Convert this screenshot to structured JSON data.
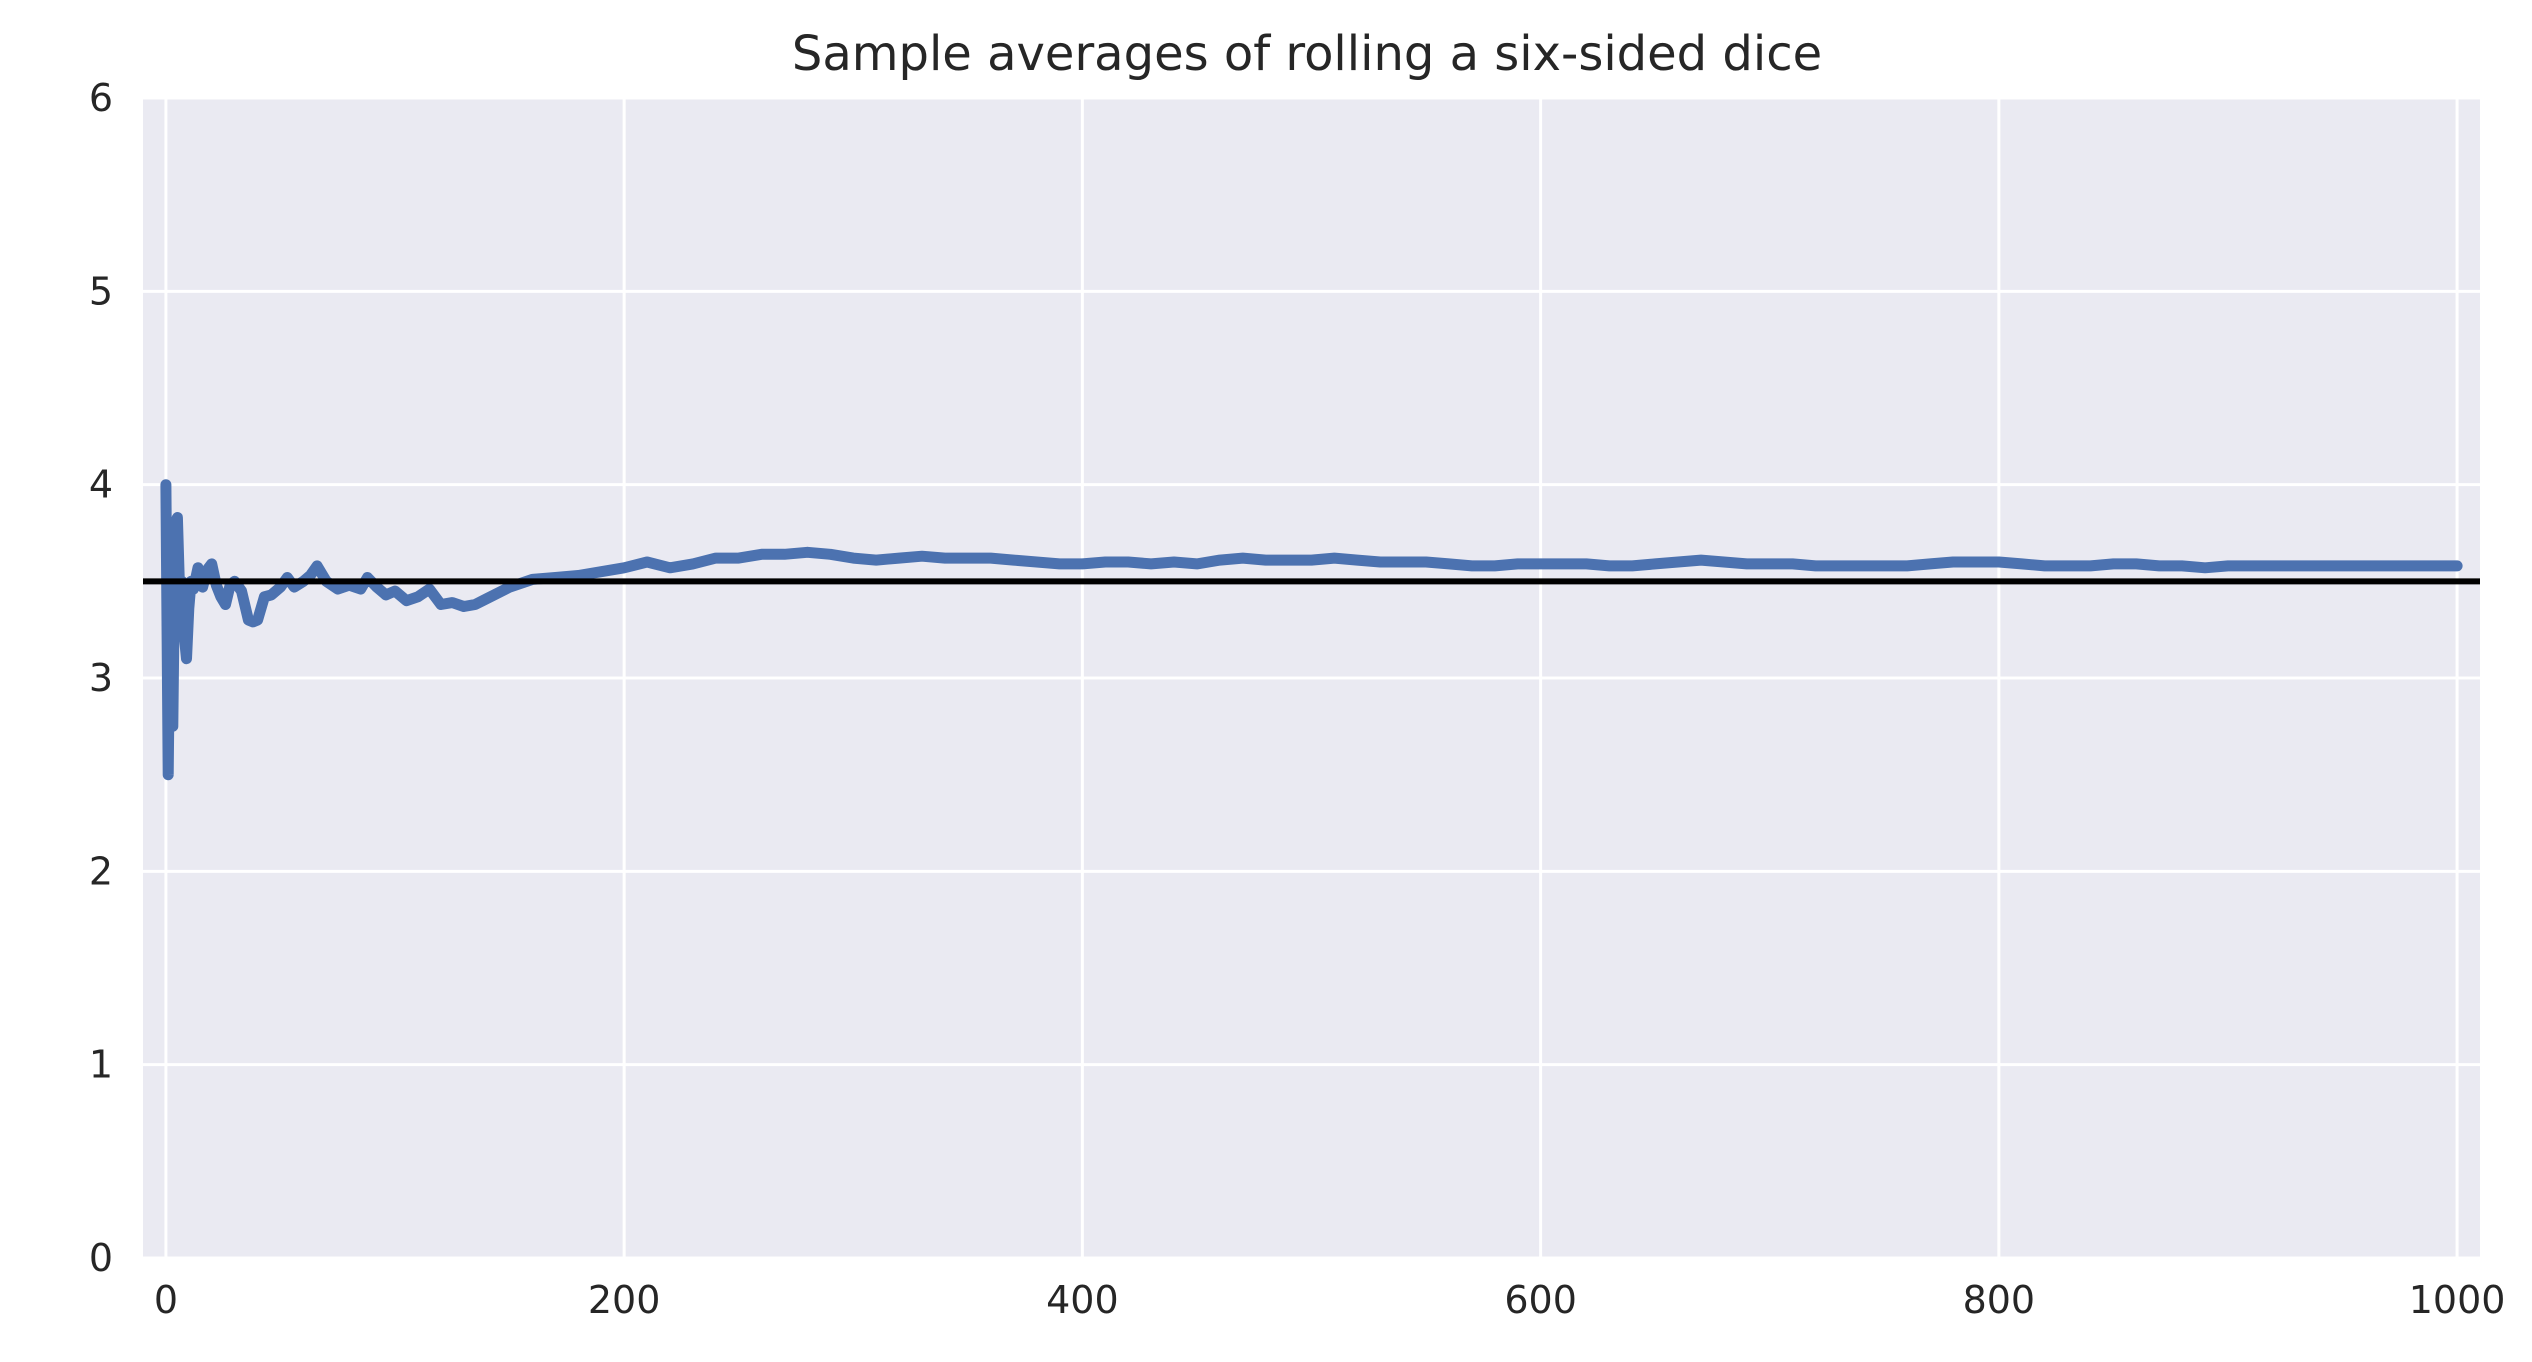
{
  "chart_data": {
    "type": "line",
    "title": "Sample averages of rolling a six-sided dice",
    "xlabel": "",
    "ylabel": "",
    "xlim": [
      -10,
      1010
    ],
    "ylim": [
      0,
      6
    ],
    "xticks": [
      0,
      200,
      400,
      600,
      800,
      1000
    ],
    "yticks": [
      0,
      1,
      2,
      3,
      4,
      5,
      6
    ],
    "grid": true,
    "background": "#eaeaf2",
    "grid_color": "#ffffff",
    "series": [
      {
        "color": "#4c72b0",
        "x": [
          0,
          1,
          2,
          3,
          4,
          5,
          6,
          7,
          8,
          9,
          10,
          11,
          12,
          14,
          16,
          18,
          20,
          22,
          24,
          26,
          28,
          30,
          33,
          36,
          38,
          40,
          43,
          46,
          50,
          53,
          56,
          60,
          63,
          66,
          70,
          75,
          80,
          85,
          88,
          92,
          96,
          100,
          105,
          110,
          115,
          120,
          125,
          130,
          135,
          140,
          150,
          160,
          170,
          180,
          190,
          200,
          210,
          220,
          230,
          240,
          250,
          260,
          270,
          280,
          290,
          300,
          310,
          320,
          330,
          340,
          350,
          360,
          370,
          380,
          390,
          400,
          410,
          420,
          430,
          440,
          450,
          460,
          470,
          480,
          490,
          500,
          510,
          520,
          530,
          540,
          550,
          560,
          570,
          580,
          590,
          600,
          610,
          620,
          630,
          640,
          650,
          660,
          670,
          680,
          690,
          700,
          710,
          720,
          730,
          740,
          750,
          760,
          770,
          780,
          790,
          800,
          810,
          820,
          830,
          840,
          850,
          860,
          870,
          880,
          890,
          900,
          910,
          920,
          930,
          940,
          950,
          960,
          970,
          980,
          990,
          1000
        ],
        "y": [
          4.0,
          2.5,
          3.67,
          2.75,
          3.8,
          3.83,
          3.43,
          3.5,
          3.22,
          3.1,
          3.36,
          3.5,
          3.46,
          3.57,
          3.47,
          3.56,
          3.59,
          3.48,
          3.42,
          3.38,
          3.48,
          3.5,
          3.45,
          3.3,
          3.29,
          3.3,
          3.42,
          3.43,
          3.47,
          3.52,
          3.47,
          3.5,
          3.53,
          3.58,
          3.5,
          3.46,
          3.48,
          3.46,
          3.52,
          3.47,
          3.43,
          3.45,
          3.4,
          3.42,
          3.46,
          3.38,
          3.39,
          3.37,
          3.38,
          3.41,
          3.47,
          3.51,
          3.52,
          3.53,
          3.55,
          3.57,
          3.6,
          3.57,
          3.59,
          3.62,
          3.62,
          3.64,
          3.64,
          3.65,
          3.64,
          3.62,
          3.61,
          3.62,
          3.63,
          3.62,
          3.62,
          3.62,
          3.61,
          3.6,
          3.59,
          3.59,
          3.6,
          3.6,
          3.59,
          3.6,
          3.59,
          3.61,
          3.62,
          3.61,
          3.61,
          3.61,
          3.62,
          3.61,
          3.6,
          3.6,
          3.6,
          3.59,
          3.58,
          3.58,
          3.59,
          3.59,
          3.59,
          3.59,
          3.58,
          3.58,
          3.59,
          3.6,
          3.61,
          3.6,
          3.59,
          3.59,
          3.59,
          3.58,
          3.58,
          3.58,
          3.58,
          3.58,
          3.59,
          3.6,
          3.6,
          3.6,
          3.59,
          3.58,
          3.58,
          3.58,
          3.59,
          3.59,
          3.58,
          3.58,
          3.57,
          3.58,
          3.58,
          3.58,
          3.58,
          3.58,
          3.58,
          3.58,
          3.58,
          3.58,
          3.58,
          3.58
        ]
      }
    ],
    "reference_line": {
      "y": 3.5,
      "color": "#000000"
    }
  }
}
